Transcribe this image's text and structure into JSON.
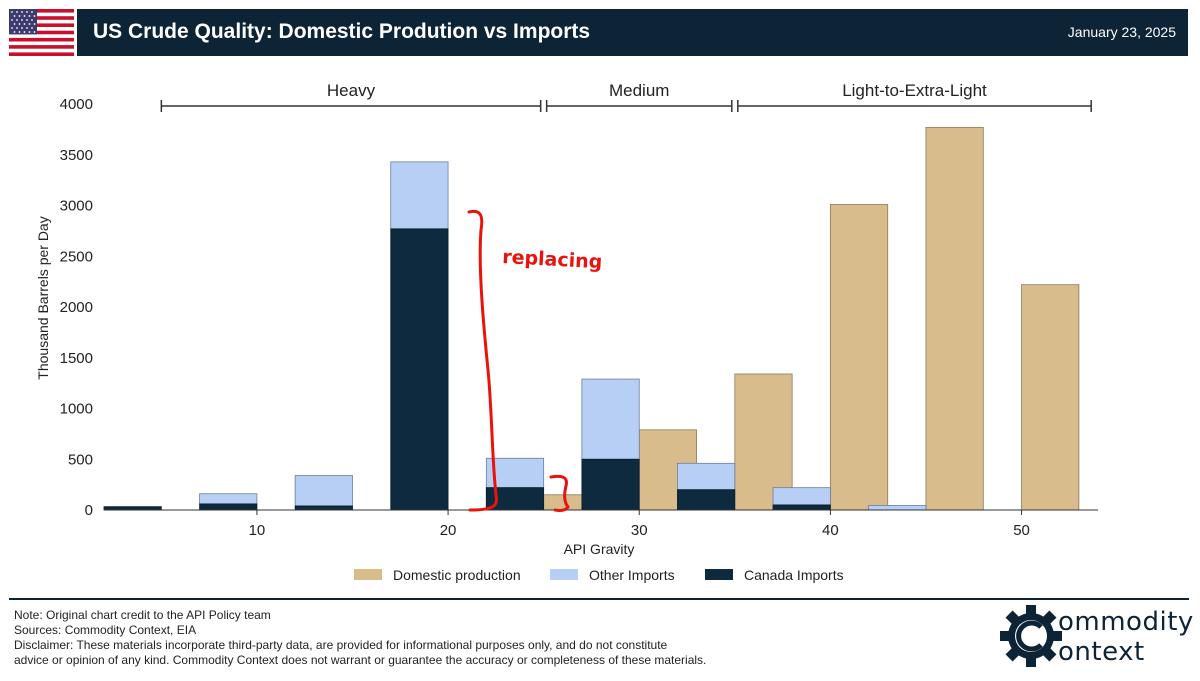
{
  "header": {
    "title": "US Crude Quality: Domestic Prodution vs Imports",
    "date": "January 23, 2025",
    "flag_icon": "us-flag-icon"
  },
  "colors": {
    "header_bg": "#0d2437",
    "domestic": "#d9bc8c",
    "other": "#b7cff5",
    "canada": "#0d2a3e",
    "annotation": "#e8130c"
  },
  "chart_data": {
    "type": "bar",
    "xlabel": "API Gravity",
    "ylabel": "Thousand Barrels per Day",
    "ylim": [
      0,
      4000
    ],
    "yticks": [
      0,
      500,
      1000,
      1500,
      2000,
      2500,
      3000,
      3500,
      4000
    ],
    "xticks": [
      10,
      20,
      30,
      40,
      50
    ],
    "bin_width": 3,
    "grid": false,
    "legend_position": "bottom",
    "series": [
      {
        "name": "Domestic production",
        "color": "#d9bc8c",
        "x": [
          23.5,
          26.5,
          31.5,
          36.5,
          41.5,
          46.5,
          51.5
        ],
        "values": [
          260,
          150,
          790,
          1340,
          3010,
          3770,
          2220
        ]
      },
      {
        "name": "Other Imports",
        "color": "#b7cff5",
        "x": [
          3.5,
          8.5,
          13.5,
          18.5,
          23.5,
          28.5,
          33.5,
          38.5,
          43.5
        ],
        "values": [
          5,
          100,
          300,
          660,
          290,
          790,
          260,
          170,
          45
        ]
      },
      {
        "name": "Canada Imports",
        "color": "#0d2a3e",
        "x": [
          3.5,
          8.5,
          13.5,
          18.5,
          23.5,
          28.5,
          33.5,
          38.5,
          43.5
        ],
        "values": [
          30,
          60,
          40,
          2770,
          220,
          500,
          200,
          50,
          0
        ]
      }
    ],
    "categories_ranges": [
      {
        "label": "Heavy",
        "from": 5,
        "to": 25
      },
      {
        "label": "Medium",
        "from": 25,
        "to": 35
      },
      {
        "label": "Light-to-Extra-Light",
        "from": 35,
        "to": 53.8
      }
    ],
    "annotation": "replacing"
  },
  "footer": {
    "note": "Note: Original chart credit to the API Policy team",
    "sources": "Sources: Commodity Context, EIA",
    "disclaimer_1": "Disclaimer: These materials incorporate third-party data, are provided for informational purposes only, and do not constitute",
    "disclaimer_2": "advice or opinion of any kind. Commodity Context does not warrant or guarantee the accuracy or completeness of these materials.",
    "logo_line1": "ommodity",
    "logo_line2": "ontext"
  }
}
